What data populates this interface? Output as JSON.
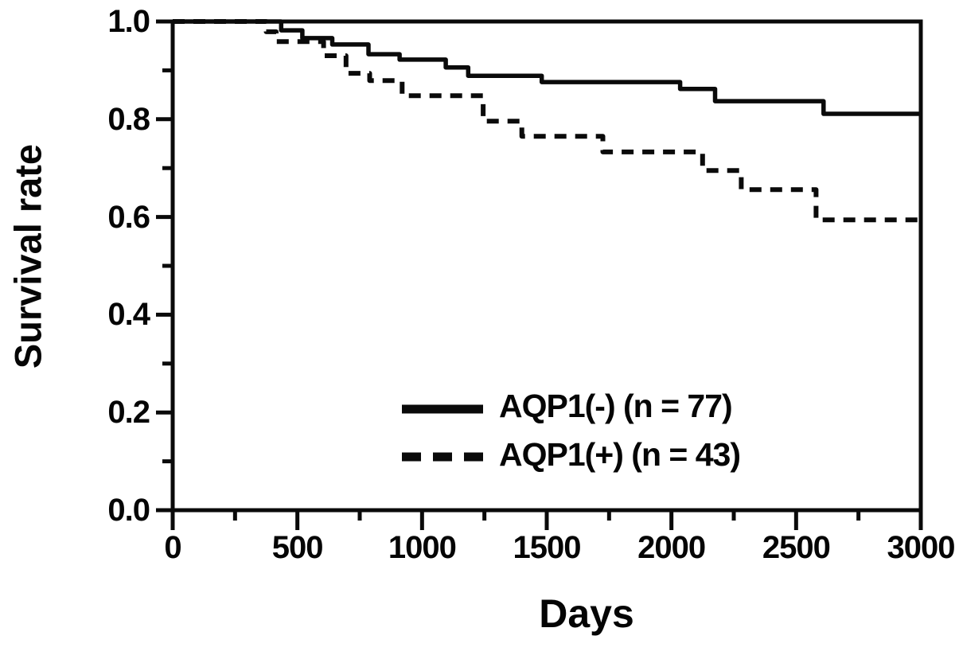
{
  "figure": {
    "background_color": "#ffffff",
    "ink_color": "#0a0a0a",
    "description": "Kaplan-Meier survival curves comparing AQP1-negative and AQP1-positive groups"
  },
  "chart_data": {
    "type": "line",
    "subtype": "kaplan-meier-step",
    "title": "",
    "xlabel": "Days",
    "ylabel": "Survival rate",
    "xlim": [
      0,
      3000
    ],
    "ylim": [
      0.0,
      1.0
    ],
    "grid": false,
    "frame": "full-box",
    "legend_position": "inside-lower-middle",
    "x_major_ticks": [
      {
        "v": 0,
        "label": "0"
      },
      {
        "v": 500,
        "label": "500"
      },
      {
        "v": 1000,
        "label": "1000"
      },
      {
        "v": 1500,
        "label": "1500"
      },
      {
        "v": 2000,
        "label": "2000"
      },
      {
        "v": 2500,
        "label": "2500"
      },
      {
        "v": 3000,
        "label": "3000"
      }
    ],
    "x_minor_ticks": [
      250,
      750,
      1250,
      1750,
      2250,
      2750
    ],
    "y_major_ticks": [
      {
        "v": 1.0,
        "label": "1.0"
      },
      {
        "v": 0.8,
        "label": "0.8"
      },
      {
        "v": 0.6,
        "label": "0.6"
      },
      {
        "v": 0.4,
        "label": "0.4"
      },
      {
        "v": 0.2,
        "label": "0.2"
      },
      {
        "v": 0.0,
        "label": "0.0"
      }
    ],
    "y_minor_ticks": [
      0.9,
      0.7,
      0.5,
      0.3,
      0.1
    ],
    "series": [
      {
        "key": "aqp1-negative",
        "name": "AQP1(-) (n = 77)",
        "n": 77,
        "style": "solid",
        "color": "#0a0a0a",
        "start": [
          0,
          1.0
        ],
        "steps": [
          [
            435,
            0.982
          ],
          [
            520,
            0.966
          ],
          [
            640,
            0.953
          ],
          [
            785,
            0.933
          ],
          [
            910,
            0.922
          ],
          [
            1095,
            0.906
          ],
          [
            1185,
            0.889
          ],
          [
            1480,
            0.876
          ],
          [
            2035,
            0.862
          ],
          [
            2175,
            0.837
          ],
          [
            2610,
            0.811
          ]
        ],
        "end_value": 0.811
      },
      {
        "key": "aqp1-positive",
        "name": "AQP1(+) (n = 43)",
        "n": 43,
        "style": "dashed",
        "color": "#0a0a0a",
        "start": [
          0,
          1.0
        ],
        "steps": [
          [
            375,
            0.979
          ],
          [
            415,
            0.959
          ],
          [
            605,
            0.93
          ],
          [
            695,
            0.894
          ],
          [
            790,
            0.879
          ],
          [
            920,
            0.848
          ],
          [
            1245,
            0.796
          ],
          [
            1400,
            0.765
          ],
          [
            1725,
            0.733
          ],
          [
            2125,
            0.695
          ],
          [
            2280,
            0.656
          ],
          [
            2580,
            0.594
          ]
        ],
        "end_value": 0.594
      }
    ]
  }
}
